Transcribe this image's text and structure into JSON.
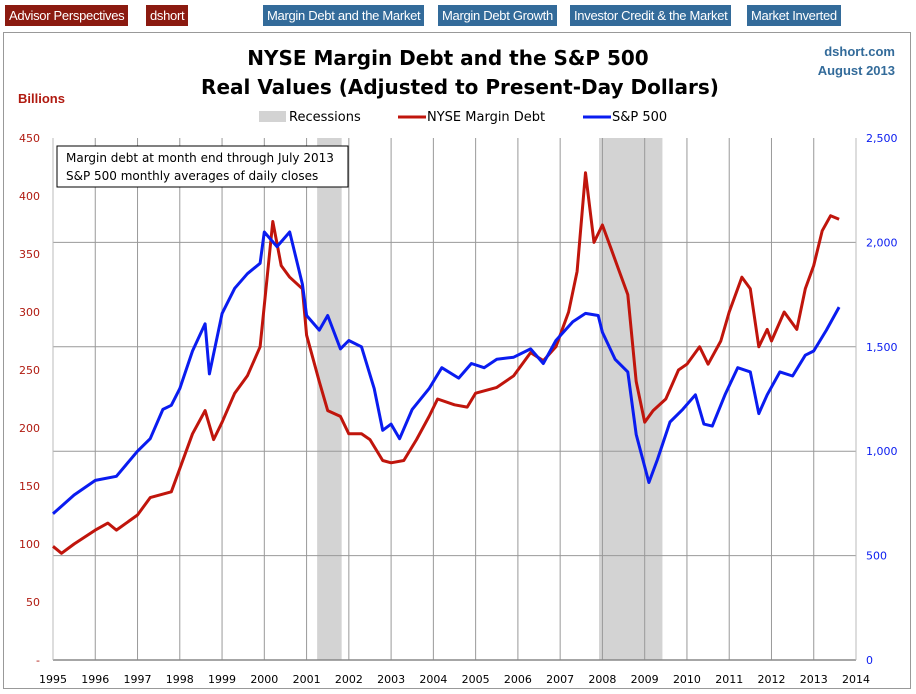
{
  "nav": {
    "brand": [
      "Advisor Perspectives",
      "dshort"
    ],
    "links": [
      "Margin Debt and the Market",
      "Margin Debt Growth",
      "Investor Credit & the Market",
      "Market Inverted"
    ]
  },
  "colors": {
    "brand": "#8b1a10",
    "nav": "#336b9a",
    "margin": "#c0150c",
    "sp": "#0a1cf0",
    "recession": "#d3d3d3"
  },
  "chart_data": {
    "type": "line",
    "title": "NYSE Margin Debt and the S&P 500",
    "subtitle": "Real Values (Adjusted to Present-Day Dollars)",
    "source": "dshort.com",
    "date": "August 2013",
    "ylabel": "Billions",
    "note": [
      "Margin debt at month end through July 2013",
      "S&P 500 monthly averages of daily closes"
    ],
    "legend": [
      "Recessions",
      "NYSE Margin Debt",
      "S&P 500"
    ],
    "legend_position": "top",
    "xlim": [
      1995,
      2014
    ],
    "xticks": [
      "1995",
      "1996",
      "1997",
      "1998",
      "1999",
      "2000",
      "2001",
      "2002",
      "2003",
      "2004",
      "2005",
      "2006",
      "2007",
      "2008",
      "2009",
      "2010",
      "2011",
      "2012",
      "2013",
      "2014"
    ],
    "ylim_left": [
      0,
      450
    ],
    "yticks_left": [
      "-",
      "50",
      "100",
      "150",
      "200",
      "250",
      "300",
      "350",
      "400",
      "450"
    ],
    "ylim_right": [
      0,
      2500
    ],
    "yticks_right": [
      "0",
      "500",
      "1,000",
      "1,500",
      "2,000",
      "2,500"
    ],
    "grid": true,
    "recessions": [
      [
        2001.25,
        2001.83
      ],
      [
        2007.92,
        2009.42
      ]
    ],
    "series": [
      {
        "name": "NYSE Margin Debt",
        "axis": "left",
        "points": [
          [
            1995.0,
            98
          ],
          [
            1995.2,
            92
          ],
          [
            1995.5,
            100
          ],
          [
            1996.0,
            112
          ],
          [
            1996.3,
            118
          ],
          [
            1996.5,
            112
          ],
          [
            1997.0,
            125
          ],
          [
            1997.3,
            140
          ],
          [
            1997.8,
            145
          ],
          [
            1998.0,
            165
          ],
          [
            1998.3,
            195
          ],
          [
            1998.6,
            215
          ],
          [
            1998.8,
            190
          ],
          [
            1999.0,
            205
          ],
          [
            1999.3,
            230
          ],
          [
            1999.6,
            245
          ],
          [
            1999.9,
            270
          ],
          [
            2000.2,
            378
          ],
          [
            2000.4,
            340
          ],
          [
            2000.6,
            330
          ],
          [
            2000.9,
            320
          ],
          [
            2001.0,
            280
          ],
          [
            2001.3,
            240
          ],
          [
            2001.5,
            215
          ],
          [
            2001.8,
            210
          ],
          [
            2002.0,
            195
          ],
          [
            2002.3,
            195
          ],
          [
            2002.5,
            190
          ],
          [
            2002.8,
            172
          ],
          [
            2003.0,
            170
          ],
          [
            2003.3,
            172
          ],
          [
            2003.6,
            190
          ],
          [
            2003.9,
            210
          ],
          [
            2004.1,
            225
          ],
          [
            2004.5,
            220
          ],
          [
            2004.8,
            218
          ],
          [
            2005.0,
            230
          ],
          [
            2005.5,
            235
          ],
          [
            2005.9,
            245
          ],
          [
            2006.3,
            265
          ],
          [
            2006.6,
            258
          ],
          [
            2006.9,
            270
          ],
          [
            2007.2,
            300
          ],
          [
            2007.4,
            335
          ],
          [
            2007.6,
            420
          ],
          [
            2007.8,
            360
          ],
          [
            2008.0,
            375
          ],
          [
            2008.2,
            355
          ],
          [
            2008.4,
            335
          ],
          [
            2008.6,
            315
          ],
          [
            2008.8,
            240
          ],
          [
            2009.0,
            205
          ],
          [
            2009.2,
            215
          ],
          [
            2009.5,
            225
          ],
          [
            2009.8,
            250
          ],
          [
            2010.0,
            255
          ],
          [
            2010.3,
            270
          ],
          [
            2010.5,
            255
          ],
          [
            2010.8,
            275
          ],
          [
            2011.0,
            300
          ],
          [
            2011.3,
            330
          ],
          [
            2011.5,
            320
          ],
          [
            2011.7,
            270
          ],
          [
            2011.9,
            285
          ],
          [
            2012.0,
            275
          ],
          [
            2012.3,
            300
          ],
          [
            2012.6,
            285
          ],
          [
            2012.8,
            320
          ],
          [
            2013.0,
            340
          ],
          [
            2013.2,
            370
          ],
          [
            2013.4,
            383
          ],
          [
            2013.6,
            380
          ]
        ]
      },
      {
        "name": "S&P 500",
        "axis": "right",
        "points": [
          [
            1995.0,
            700
          ],
          [
            1995.5,
            790
          ],
          [
            1996.0,
            860
          ],
          [
            1996.5,
            880
          ],
          [
            1997.0,
            1000
          ],
          [
            1997.3,
            1060
          ],
          [
            1997.6,
            1200
          ],
          [
            1997.8,
            1220
          ],
          [
            1998.0,
            1300
          ],
          [
            1998.3,
            1480
          ],
          [
            1998.6,
            1610
          ],
          [
            1998.7,
            1370
          ],
          [
            1999.0,
            1660
          ],
          [
            1999.3,
            1780
          ],
          [
            1999.6,
            1850
          ],
          [
            1999.9,
            1900
          ],
          [
            2000.0,
            2050
          ],
          [
            2000.3,
            1980
          ],
          [
            2000.6,
            2050
          ],
          [
            2000.9,
            1800
          ],
          [
            2001.0,
            1650
          ],
          [
            2001.3,
            1580
          ],
          [
            2001.5,
            1650
          ],
          [
            2001.8,
            1490
          ],
          [
            2002.0,
            1530
          ],
          [
            2002.3,
            1500
          ],
          [
            2002.6,
            1300
          ],
          [
            2002.8,
            1100
          ],
          [
            2003.0,
            1130
          ],
          [
            2003.2,
            1060
          ],
          [
            2003.5,
            1200
          ],
          [
            2003.9,
            1300
          ],
          [
            2004.2,
            1400
          ],
          [
            2004.6,
            1350
          ],
          [
            2004.9,
            1420
          ],
          [
            2005.2,
            1400
          ],
          [
            2005.5,
            1440
          ],
          [
            2005.9,
            1450
          ],
          [
            2006.3,
            1490
          ],
          [
            2006.6,
            1420
          ],
          [
            2006.9,
            1530
          ],
          [
            2007.3,
            1620
          ],
          [
            2007.6,
            1660
          ],
          [
            2007.9,
            1650
          ],
          [
            2008.0,
            1570
          ],
          [
            2008.3,
            1440
          ],
          [
            2008.6,
            1380
          ],
          [
            2008.8,
            1080
          ],
          [
            2009.1,
            850
          ],
          [
            2009.3,
            960
          ],
          [
            2009.6,
            1140
          ],
          [
            2009.9,
            1200
          ],
          [
            2010.2,
            1270
          ],
          [
            2010.4,
            1130
          ],
          [
            2010.6,
            1120
          ],
          [
            2010.9,
            1270
          ],
          [
            2011.2,
            1400
          ],
          [
            2011.5,
            1380
          ],
          [
            2011.7,
            1180
          ],
          [
            2011.9,
            1270
          ],
          [
            2012.2,
            1380
          ],
          [
            2012.5,
            1360
          ],
          [
            2012.8,
            1460
          ],
          [
            2013.0,
            1480
          ],
          [
            2013.3,
            1580
          ],
          [
            2013.6,
            1690
          ]
        ]
      }
    ]
  }
}
